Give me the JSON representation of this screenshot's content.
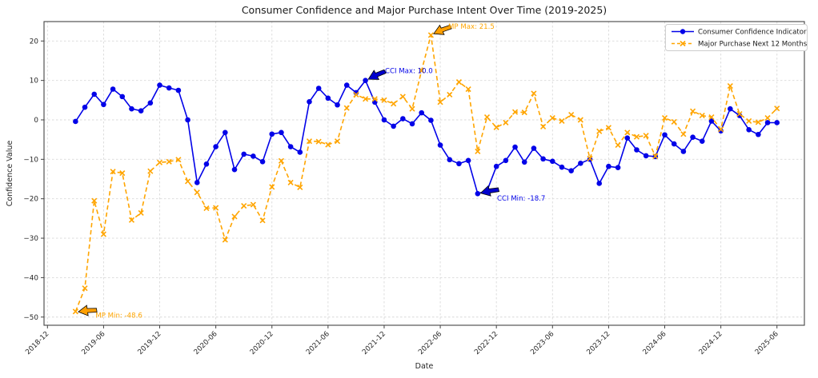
{
  "title": "Consumer Confidence and Major Purchase Intent Over Time (2019-2025)",
  "x_axis": {
    "label": "Date",
    "tick_labels": [
      "2018-12",
      "2019-06",
      "2019-12",
      "2020-06",
      "2020-12",
      "2021-06",
      "2021-12",
      "2022-06",
      "2022-12",
      "2023-06",
      "2023-12",
      "2024-06",
      "2024-12",
      "2025-06"
    ]
  },
  "y_axis": {
    "label": "Confidence Value",
    "tick_values": [
      20,
      10,
      0,
      -10,
      -20,
      -30,
      -40,
      -50
    ],
    "tick_display": [
      "20",
      "10",
      "0",
      "−10",
      "−20",
      "−30",
      "−40",
      "−50"
    ]
  },
  "legend": {
    "items": [
      {
        "label": "Consumer Confidence Indicator",
        "color": "#0202e8",
        "line": "solid",
        "marker": "circle"
      },
      {
        "label": "Major Purchase Next 12 Months",
        "color": "#ffa500",
        "line": "dashed",
        "marker": "x"
      }
    ]
  },
  "annotations": [
    {
      "id": "cci-max",
      "text": "CCI Max: 10.0",
      "color": "#0202e8",
      "arrow_fill": "#0000cd",
      "series": 0,
      "index": 31,
      "tip_dx": 3.6,
      "tip_dy": -1.5,
      "angle": -28,
      "text_dx": 24.4,
      "text_dy": -9.2
    },
    {
      "id": "cci-min",
      "text": "CCI Min: -18.7",
      "color": "#0202e8",
      "arrow_fill": "#0000cd",
      "series": 0,
      "index": 43,
      "tip_dx": 3.6,
      "tip_dy": -0.6,
      "angle": -14,
      "text_dx": 24.2,
      "text_dy": 8.7
    },
    {
      "id": "mp-max",
      "text": "MP Max: 21.5",
      "color": "#ffa500",
      "arrow_fill": "#ff9f00",
      "series": 1,
      "index": 38,
      "tip_dx": 3.4,
      "tip_dy": -1.6,
      "angle": -25,
      "text_dx": 21.6,
      "text_dy": -7.9
    },
    {
      "id": "mp-min",
      "text": "MP Min: -48.6",
      "color": "#ffa500",
      "arrow_fill": "#ff9f00",
      "series": 1,
      "index": 0,
      "tip_dx": 3.5,
      "tip_dy": 0.3,
      "angle": -8,
      "text_dx": 25.0,
      "text_dy": 7.8
    }
  ],
  "colors": {
    "grid": "#d9d9d9",
    "spine": "#444444",
    "title": "#1a1a1a",
    "tick_text": "#262626",
    "legend_border": "#cccccc",
    "background": "#ffffff"
  },
  "chart_data": {
    "type": "line",
    "x": [
      "2019-03",
      "2019-04",
      "2019-05",
      "2019-06",
      "2019-07",
      "2019-08",
      "2019-09",
      "2019-10",
      "2019-11",
      "2019-12",
      "2020-01",
      "2020-02",
      "2020-03",
      "2020-04",
      "2020-05",
      "2020-06",
      "2020-07",
      "2020-08",
      "2020-09",
      "2020-10",
      "2020-11",
      "2020-12",
      "2021-01",
      "2021-02",
      "2021-03",
      "2021-04",
      "2021-05",
      "2021-06",
      "2021-07",
      "2021-08",
      "2021-09",
      "2021-10",
      "2021-11",
      "2021-12",
      "2022-01",
      "2022-02",
      "2022-03",
      "2022-04",
      "2022-05",
      "2022-06",
      "2022-07",
      "2022-08",
      "2022-09",
      "2022-10",
      "2022-11",
      "2022-12",
      "2023-01",
      "2023-02",
      "2023-03",
      "2023-04",
      "2023-05",
      "2023-06",
      "2023-07",
      "2023-08",
      "2023-09",
      "2023-10",
      "2023-11",
      "2023-12",
      "2024-01",
      "2024-02",
      "2024-03",
      "2024-04",
      "2024-05",
      "2024-06",
      "2024-07",
      "2024-08",
      "2024-09",
      "2024-10",
      "2024-11",
      "2024-12",
      "2025-01",
      "2025-02",
      "2025-03",
      "2025-04",
      "2025-05",
      "2025-06"
    ],
    "series": [
      {
        "name": "Consumer Confidence Indicator",
        "color": "#0202e8",
        "style": "solid",
        "marker": "circle",
        "values": [
          -0.4,
          3.2,
          6.5,
          3.9,
          7.8,
          5.9,
          2.8,
          2.3,
          4.3,
          8.8,
          8.1,
          7.5,
          0.0,
          -15.9,
          -11.2,
          -6.8,
          -3.2,
          -12.6,
          -8.7,
          -9.2,
          -10.6,
          -3.6,
          -3.2,
          -6.8,
          -8.2,
          4.6,
          8.0,
          5.5,
          3.8,
          8.8,
          6.9,
          10.0,
          4.5,
          0.0,
          -1.6,
          0.3,
          -1.0,
          1.8,
          -0.1,
          -6.4,
          -10.1,
          -11.1,
          -10.3,
          -18.7,
          -18.0,
          -11.8,
          -10.3,
          -6.9,
          -10.7,
          -7.2,
          -9.9,
          -10.5,
          -12.0,
          -12.9,
          -11.0,
          -10.0,
          -16.1,
          -11.8,
          -12.1,
          -4.6,
          -7.6,
          -9.1,
          -9.3,
          -3.8,
          -6.1,
          -8.0,
          -4.4,
          -5.4,
          -0.3,
          -2.8,
          2.8,
          1.1,
          -2.5,
          -3.7,
          -0.7,
          -0.7
        ]
      },
      {
        "name": "Major Purchase Next 12 Months",
        "color": "#ffa500",
        "style": "dashed",
        "marker": "x",
        "values": [
          -48.6,
          -42.7,
          -20.5,
          -29.0,
          -13.1,
          -13.5,
          -25.4,
          -23.6,
          -13.0,
          -10.8,
          -10.6,
          -10.1,
          -15.6,
          -18.4,
          -22.4,
          -22.3,
          -30.4,
          -24.5,
          -21.8,
          -21.5,
          -25.5,
          -17.0,
          -10.4,
          -15.9,
          -17.1,
          -5.4,
          -5.5,
          -6.3,
          -5.4,
          3.0,
          6.4,
          5.3,
          5.3,
          5.0,
          4.1,
          5.9,
          2.8,
          12.5,
          21.5,
          4.5,
          6.4,
          9.6,
          7.8,
          -8.0,
          0.7,
          -1.9,
          -0.7,
          2.0,
          1.9,
          6.7,
          -1.7,
          0.5,
          -0.3,
          1.3,
          0.0,
          -9.8,
          -2.9,
          -2.0,
          -6.4,
          -3.2,
          -4.3,
          -4.0,
          -9.2,
          0.5,
          -0.5,
          -3.6,
          2.2,
          1.1,
          0.7,
          -2.4,
          8.6,
          1.5,
          -0.3,
          -0.6,
          0.5,
          2.9
        ]
      }
    ],
    "title": "Consumer Confidence and Major Purchase Intent Over Time (2019-2025)",
    "xlabel": "Date",
    "ylabel": "Confidence Value",
    "ylim": [
      -52,
      25
    ],
    "grid": true,
    "legend_position": "upper right",
    "annotated_extremes": {
      "cci_max": 10.0,
      "cci_min": -18.7,
      "mp_max": 21.5,
      "mp_min": -48.6
    }
  }
}
